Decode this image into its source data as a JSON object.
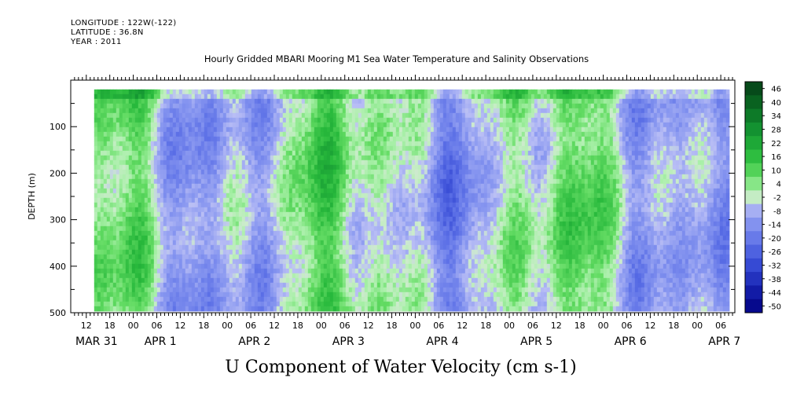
{
  "header": {
    "longitude": "LONGITUDE : 122W(-122)",
    "latitude": "LATITUDE : 36.8N",
    "year": "YEAR : 2011"
  },
  "chart_data": {
    "type": "heatmap",
    "title": "Hourly Gridded MBARI Mooring M1 Sea Water Temperature and Salinity Observations",
    "xlabel": "U Component of Water Velocity (cm s-1)",
    "ylabel": "DEPTH (m)",
    "ylim": [
      500,
      0
    ],
    "y_ticks": [
      "100",
      "200",
      "300",
      "400",
      "500"
    ],
    "hour_ticks": [
      "12",
      "18",
      "00",
      "06",
      "12",
      "18",
      "00",
      "06",
      "12",
      "18",
      "00",
      "06",
      "12",
      "18",
      "00",
      "06",
      "12",
      "18",
      "00",
      "06",
      "12",
      "18",
      "00",
      "06",
      "12",
      "18",
      "00",
      "06"
    ],
    "day_labels": [
      "MAR 31",
      "APR 1",
      "APR 2",
      "APR 3",
      "APR 4",
      "APR 5",
      "APR 6",
      "APR 7"
    ],
    "colorbar": {
      "levels": [
        "46",
        "40",
        "34",
        "28",
        "22",
        "16",
        "10",
        "4",
        "-2",
        "-8",
        "-14",
        "-20",
        "-26",
        "-32",
        "-38",
        "-44",
        "-50"
      ],
      "range": [
        -50,
        50
      ]
    },
    "time_range_hours_from_mar31_00": [
      14,
      176
    ],
    "depth_range_m": [
      20,
      488
    ]
  }
}
